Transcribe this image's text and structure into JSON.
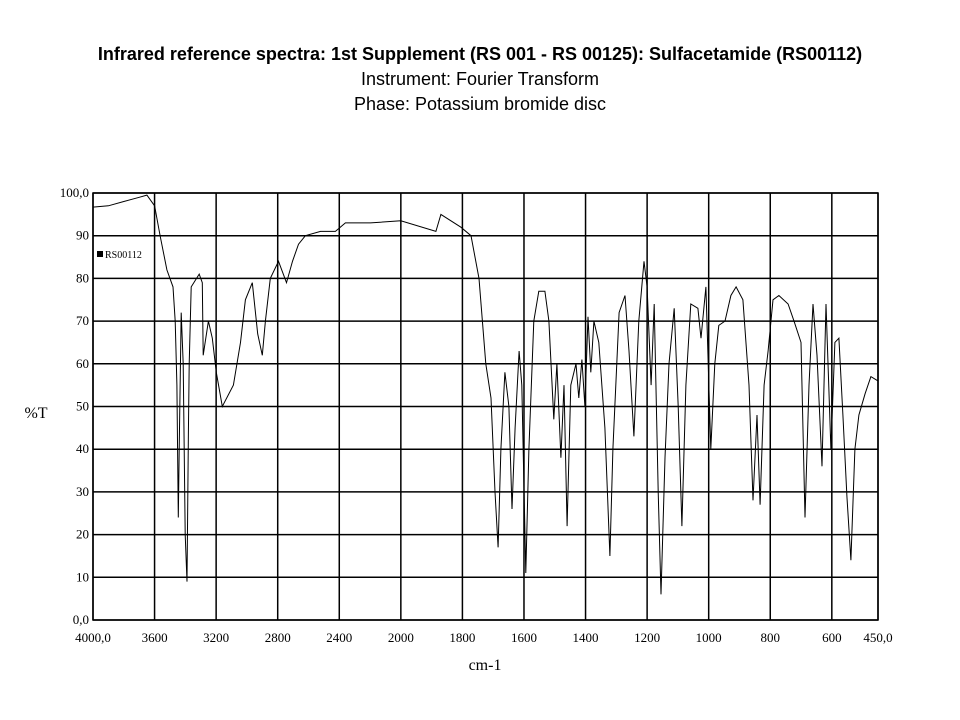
{
  "chart_data": {
    "type": "line",
    "title": "Infrared reference spectra: 1st Supplement (RS 001 - RS 00125): Sulfacetamide (RS00112)",
    "subtitle": [
      "Instrument: Fourier Transform",
      "Phase: Potassium bromide disc"
    ],
    "x_label": "cm-1",
    "y_label": "%T",
    "xlim": [
      4000,
      450
    ],
    "x_scale_break": 2000,
    "x_scale_ratio": 2,
    "ylim": [
      0,
      100
    ],
    "xticks": [
      {
        "value": 4000,
        "label": "4000,0"
      },
      3600,
      3200,
      2800,
      2400,
      2000,
      1800,
      1600,
      1400,
      1200,
      1000,
      800,
      600,
      {
        "value": 450,
        "label": "450,0"
      }
    ],
    "yticks": [
      {
        "value": 0,
        "label": "0,0"
      },
      10,
      20,
      30,
      40,
      50,
      60,
      70,
      80,
      90,
      {
        "value": 100,
        "label": "100,0"
      }
    ],
    "grid": true,
    "legend": "upper left",
    "x": [
      4000,
      3900,
      3800,
      3700,
      3650,
      3600,
      3564,
      3520,
      3480,
      3466,
      3455,
      3446,
      3440,
      3427,
      3414,
      3401,
      3389,
      3380,
      3375,
      3362,
      3310,
      3290,
      3284,
      3250,
      3225,
      3199,
      3160,
      3088,
      3042,
      3010,
      2965,
      2930,
      2900,
      2880,
      2848,
      2795,
      2743,
      2704,
      2665,
      2620,
      2522,
      2425,
      2360,
      2197,
      2000,
      1886,
      1870,
      1805,
      1772,
      1746,
      1724,
      1707,
      1694,
      1684,
      1675,
      1662,
      1649,
      1639,
      1629,
      1616,
      1607,
      1594,
      1584,
      1568,
      1552,
      1532,
      1519,
      1503,
      1493,
      1480,
      1470,
      1460,
      1448,
      1431,
      1422,
      1412,
      1402,
      1392,
      1383,
      1373,
      1357,
      1337,
      1321,
      1311,
      1291,
      1272,
      1259,
      1243,
      1227,
      1210,
      1200,
      1187,
      1177,
      1164,
      1155,
      1142,
      1129,
      1112,
      1099,
      1087,
      1074,
      1058,
      1035,
      1025,
      1009,
      993,
      980,
      967,
      947,
      928,
      911,
      889,
      869,
      856,
      843,
      833,
      820,
      807,
      791,
      772,
      742,
      723,
      700,
      687,
      674,
      661,
      648,
      632,
      619,
      603,
      590,
      577,
      564,
      551,
      538,
      525,
      512,
      492,
      473,
      450
    ],
    "series": [
      {
        "name": "RS00112",
        "color": "#000000",
        "values": [
          96.7,
          97,
          98,
          99,
          99.5,
          97,
          90,
          82,
          78,
          70,
          55,
          24,
          40,
          72,
          60,
          20,
          9,
          44,
          60,
          78,
          81,
          79,
          62,
          70,
          66,
          58,
          50,
          55,
          65,
          75,
          79,
          67,
          62,
          70,
          80,
          84,
          79,
          84,
          88,
          90,
          91,
          91,
          93,
          93,
          93.5,
          91,
          95,
          92,
          90,
          80,
          60,
          52,
          30,
          17,
          40,
          58,
          50,
          26,
          45,
          63,
          55,
          11,
          40,
          70,
          77,
          77,
          70,
          47,
          60,
          38,
          55,
          22,
          55,
          60,
          52,
          61,
          50,
          71,
          58,
          70,
          65,
          45,
          15,
          40,
          72,
          76,
          63,
          43,
          70,
          84,
          78,
          55,
          74,
          30,
          6,
          38,
          60,
          73,
          50,
          22,
          55,
          74,
          73,
          66,
          78,
          40,
          60,
          69,
          70,
          76,
          78,
          75,
          55,
          28,
          48,
          27,
          55,
          63,
          75,
          76,
          74,
          70,
          65,
          24,
          55,
          74,
          62,
          36,
          74,
          40,
          65,
          66,
          48,
          29,
          14,
          40,
          48,
          53,
          57,
          56
        ]
      }
    ]
  }
}
